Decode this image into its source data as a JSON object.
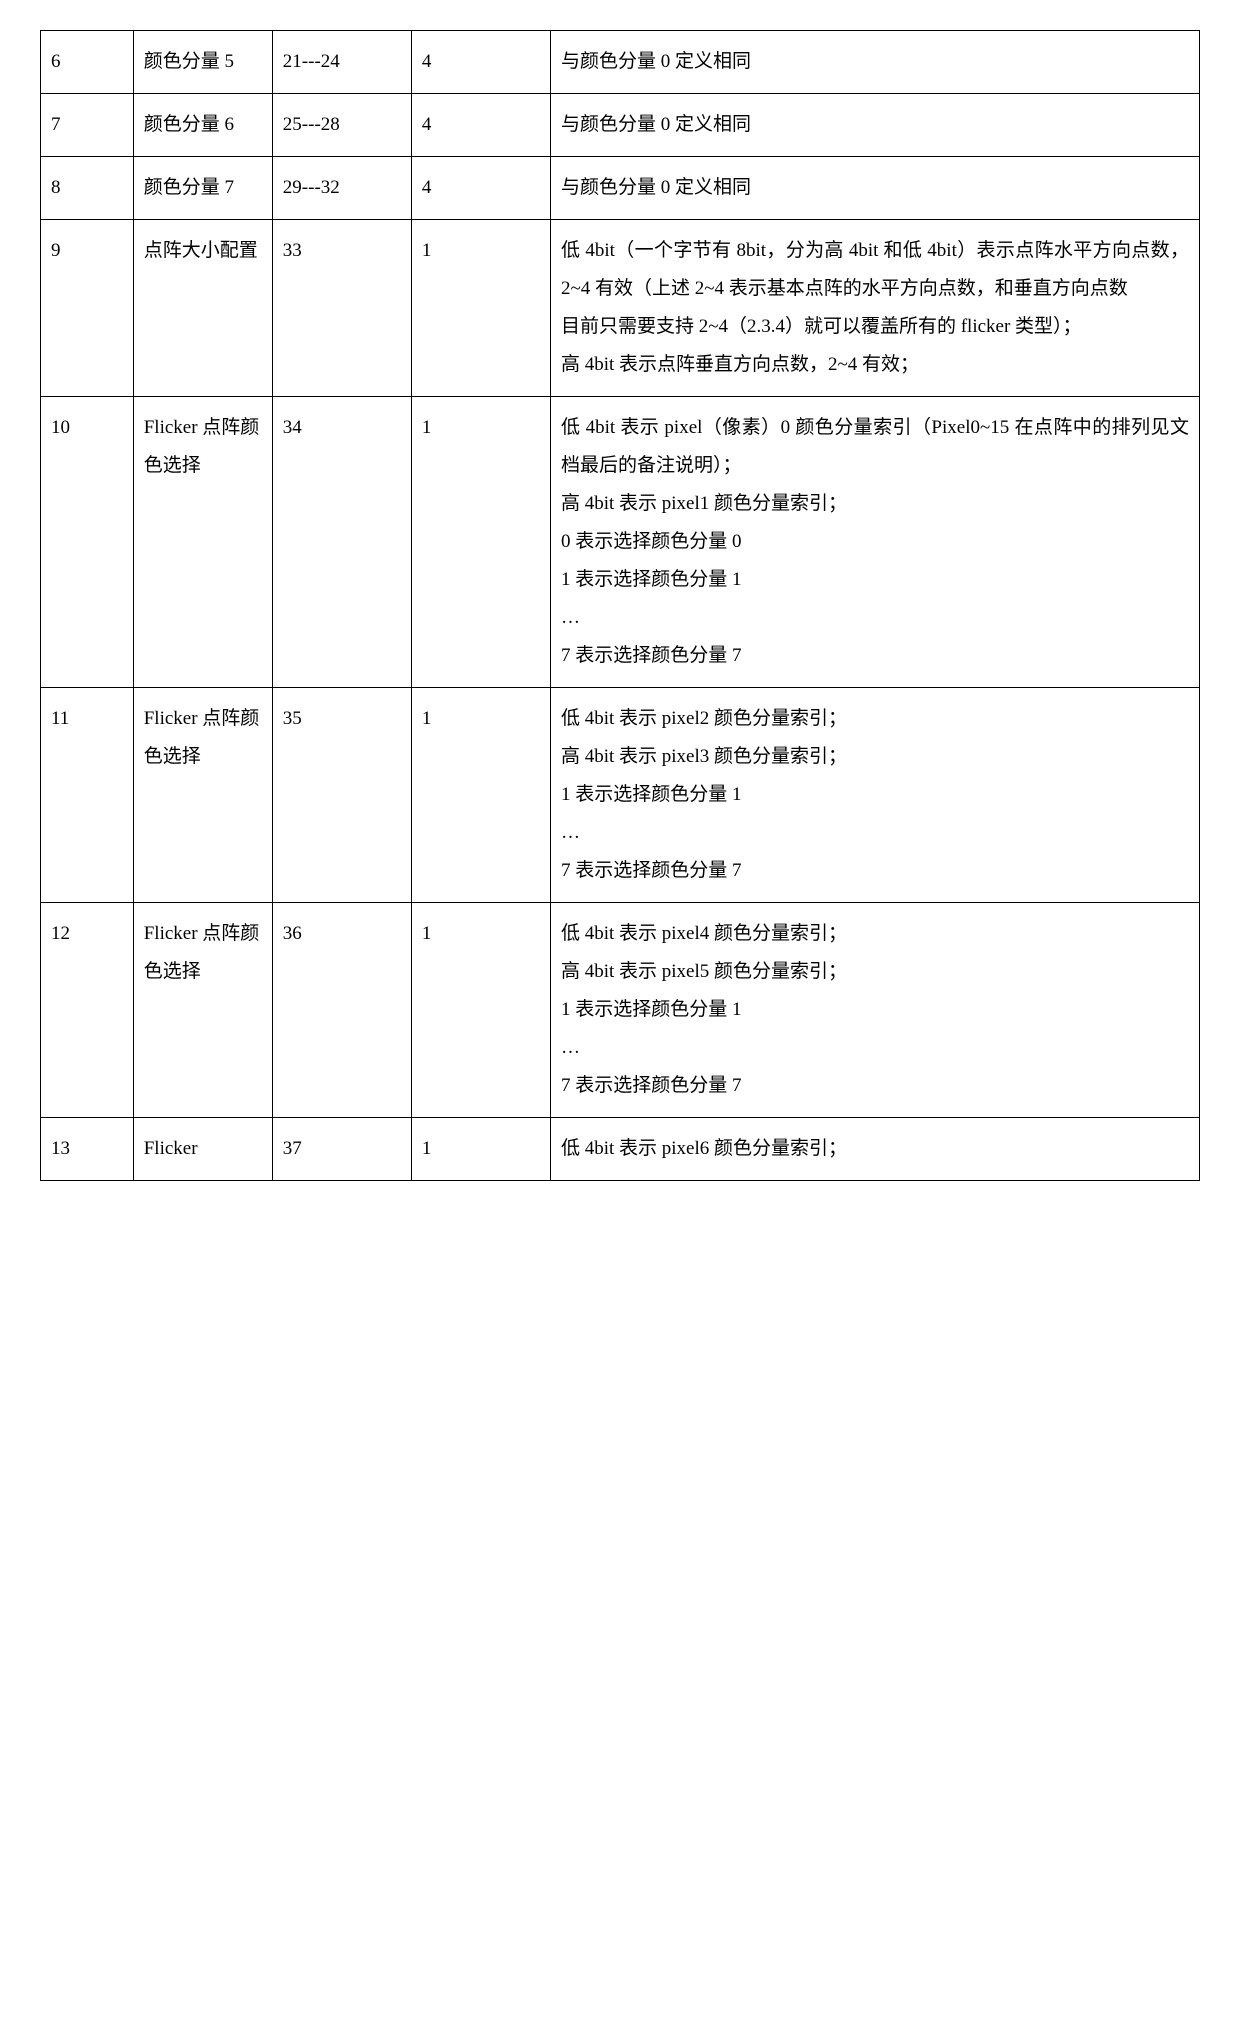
{
  "table": {
    "type": "table",
    "column_widths_pct": [
      8,
      12,
      12,
      12,
      56
    ],
    "border_color": "#000000",
    "background_color": "#ffffff",
    "text_color": "#000000",
    "font_size_pt": 14,
    "line_height": 2.0,
    "rows": [
      {
        "c1": "6",
        "c2": "颜色分量 5",
        "c3": "21---24",
        "c4": "4",
        "c5": "与颜色分量 0 定义相同"
      },
      {
        "c1": "7",
        "c2": "颜色分量 6",
        "c3": "25---28",
        "c4": "4",
        "c5": "与颜色分量 0 定义相同"
      },
      {
        "c1": "8",
        "c2": "颜色分量 7",
        "c3": "29---32",
        "c4": "4",
        "c5": "与颜色分量 0 定义相同"
      },
      {
        "c1": "9",
        "c2": "点阵大小配置",
        "c3": "33",
        "c4": "1",
        "c5": "低 4bit（一个字节有 8bit，分为高 4bit 和低 4bit）表示点阵水平方向点数，2~4 有效（上述 2~4 表示基本点阵的水平方向点数，和垂直方向点数\n目前只需要支持 2~4（2.3.4）就可以覆盖所有的 flicker 类型）；\n高 4bit 表示点阵垂直方向点数，2~4 有效；"
      },
      {
        "c1": "10",
        "c2": "Flicker 点阵颜色选择",
        "c3": "34",
        "c4": "1",
        "c5": "低 4bit 表示 pixel（像素）0 颜色分量索引（Pixel0~15 在点阵中的排列见文档最后的备注说明）；\n高 4bit 表示 pixel1 颜色分量索引；\n0 表示选择颜色分量 0\n1 表示选择颜色分量 1\n…\n7 表示选择颜色分量 7"
      },
      {
        "c1": "11",
        "c2": "Flicker 点阵颜色选择",
        "c3": "35",
        "c4": "1",
        "c5": "低 4bit 表示 pixel2 颜色分量索引；\n高 4bit 表示 pixel3 颜色分量索引；\n1 表示选择颜色分量 1\n…\n7 表示选择颜色分量 7"
      },
      {
        "c1": "12",
        "c2": "Flicker 点阵颜色选择",
        "c3": "36",
        "c4": "1",
        "c5": "低 4bit 表示 pixel4 颜色分量索引；\n高 4bit 表示 pixel5 颜色分量索引；\n1 表示选择颜色分量 1\n…\n7 表示选择颜色分量 7"
      },
      {
        "c1": "13",
        "c2": "Flicker",
        "c3": "37",
        "c4": "1",
        "c5": "低 4bit 表示 pixel6 颜色分量索引；"
      }
    ]
  }
}
